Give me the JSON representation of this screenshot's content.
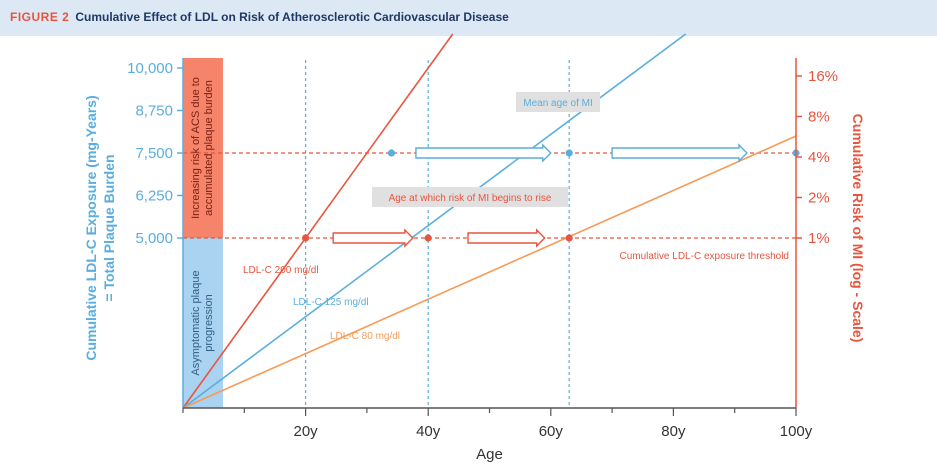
{
  "figure": {
    "number": "FIGURE 2",
    "title": "Cumulative Effect of LDL on Risk of Atherosclerotic Cardiovascular Disease"
  },
  "colors": {
    "blue": "#5aaedd",
    "red": "#e8553f",
    "orange": "#f79a55",
    "header_bg": "#dce9f4",
    "band_red": "#f6846a",
    "band_blue": "#a9d3f0",
    "label_box": "#e0e0e0"
  },
  "chart_data": {
    "type": "line",
    "xlabel": "Age",
    "ylabel_left": [
      "Cumulative LDL-C Exposure (mg-Years)",
      "= Total Plaque Burden"
    ],
    "ylabel_right": "Cumulative Risk of MI (log - Scale)",
    "x_ticks": [
      20,
      40,
      60,
      80,
      100
    ],
    "x_tick_labels": [
      "20y",
      "40y",
      "60y",
      "80y",
      "100y"
    ],
    "xlim": [
      0,
      100
    ],
    "y_left_ticks": [
      5000,
      6250,
      7500,
      8750,
      10000
    ],
    "y_left_tick_labels": [
      "5,000",
      "6,250",
      "7,500",
      "8,750",
      "10,000"
    ],
    "ylim_left": [
      0,
      10000
    ],
    "y_right_ticks": [
      1,
      2,
      4,
      8,
      16
    ],
    "y_right_tick_labels": [
      "1%",
      "2%",
      "4%",
      "8%",
      "16%"
    ],
    "y_right_scale": "log",
    "series": [
      {
        "name": "LDL-C 200 mg/dl",
        "color": "#e8553f",
        "x": [
          0,
          44
        ],
        "y": [
          0,
          11000
        ]
      },
      {
        "name": "LDL-C 125 mg/dl",
        "color": "#5aaedd",
        "x": [
          0,
          82
        ],
        "y": [
          0,
          11000
        ]
      },
      {
        "name": "LDL-C 80 mg/dl",
        "color": "#f79a55",
        "x": [
          0,
          100
        ],
        "y": [
          0,
          8000
        ]
      }
    ],
    "reference_lines": {
      "threshold_y": 5000,
      "mean_mi_y": 7500,
      "vertical_x": [
        20,
        40,
        63
      ]
    },
    "markers": {
      "threshold": [
        {
          "x": 20,
          "color": "#e8553f"
        },
        {
          "x": 40,
          "color": "#e8553f"
        },
        {
          "x": 63,
          "color": "#e8553f"
        }
      ],
      "mean_mi": [
        {
          "x": 34,
          "color": "#5aaedd"
        },
        {
          "x": 63,
          "color": "#5aaedd"
        },
        {
          "x": 100,
          "color": "#5aaedd"
        }
      ]
    },
    "annotations": {
      "mean_age_mi": "Mean age of MI",
      "age_risk_rise": "Age at which risk of MI begins to rise",
      "exposure_threshold": "Cumulative LDL-C exposure threshold",
      "band_upper": [
        "Increasing risk of ACS due to",
        "accumulated plaque burden"
      ],
      "band_lower": [
        "Asymptomatic plaque",
        "progression"
      ]
    }
  }
}
